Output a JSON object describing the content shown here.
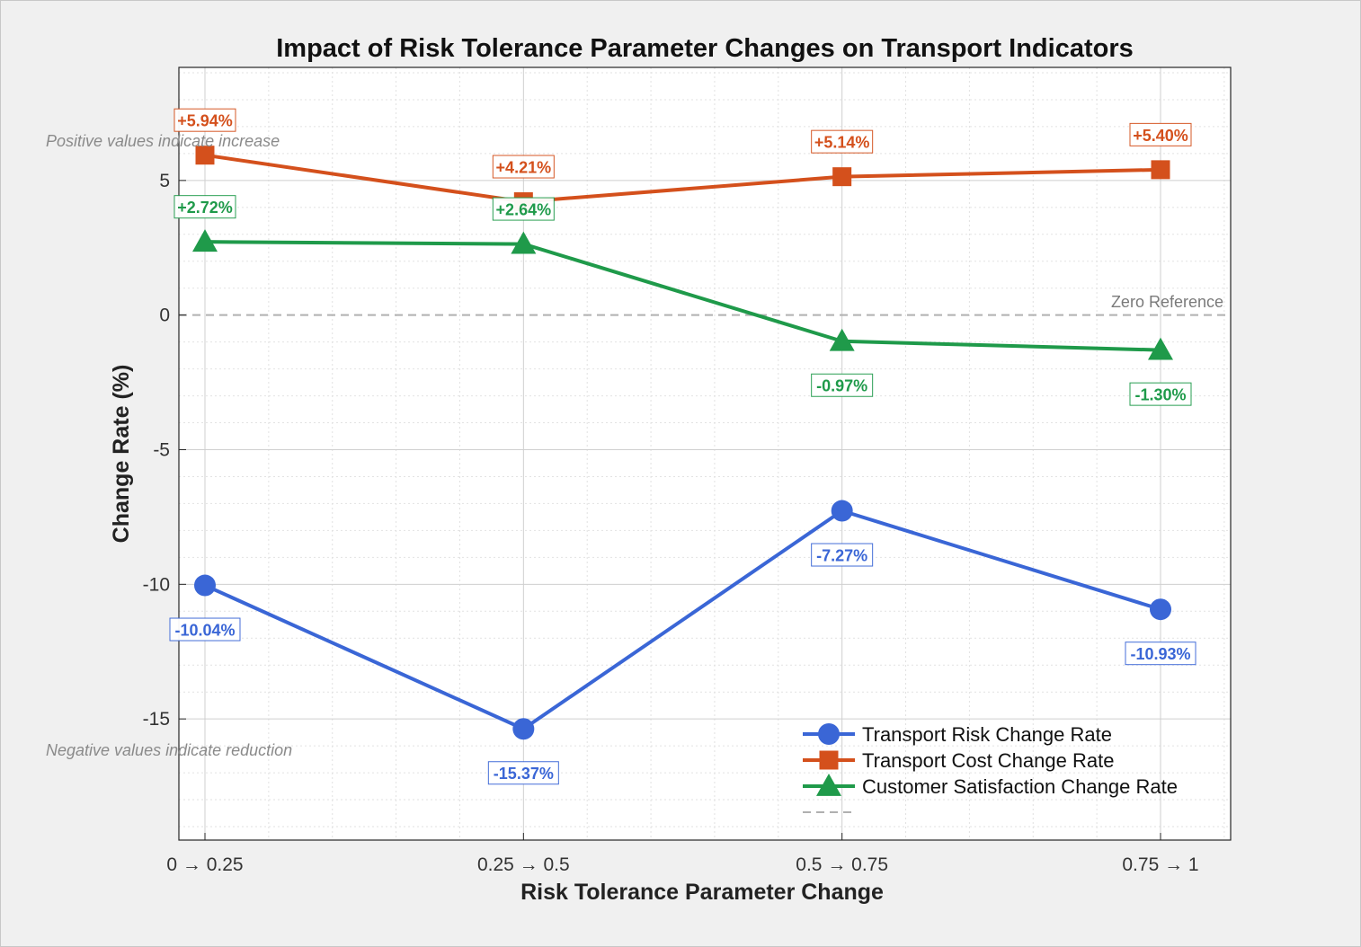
{
  "chart_data": {
    "type": "line",
    "title": "Impact of Risk Tolerance Parameter Changes on Transport Indicators",
    "xlabel": "Risk Tolerance Parameter Change",
    "ylabel": "Change Rate (%)",
    "categories": [
      "0 → 0.25",
      "0.25 → 0.5",
      "0.5 → 0.75",
      "0.75 → 1"
    ],
    "ylim": [
      -19.5,
      9.2
    ],
    "yticks": [
      5,
      0,
      -5,
      -10,
      -15
    ],
    "grid": true,
    "legend_position": "bottom-right",
    "series": [
      {
        "name": "Transport Risk Change Rate",
        "color": "#3a66d6",
        "marker": "circle",
        "values": [
          -10.04,
          -15.37,
          -7.27,
          -10.93
        ],
        "labels": [
          "-10.04%",
          "-15.37%",
          "-7.27%",
          "-10.93%"
        ]
      },
      {
        "name": "Transport Cost Change Rate",
        "color": "#d4501c",
        "marker": "square",
        "values": [
          5.94,
          4.21,
          5.14,
          5.4
        ],
        "labels": [
          "+5.94%",
          "+4.21%",
          "+5.14%",
          "+5.40%"
        ]
      },
      {
        "name": "Customer Satisfaction Change Rate",
        "color": "#1f9a4a",
        "marker": "triangle",
        "values": [
          2.72,
          2.64,
          -0.97,
          -1.3
        ],
        "labels": [
          "+2.72%",
          "+2.64%",
          "-0.97%",
          "-1.30%"
        ]
      }
    ],
    "reference_line": {
      "value": 0,
      "label": "Zero Reference",
      "color": "#b0b0b0"
    },
    "annotations": {
      "positive_note": "Positive values indicate increase",
      "negative_note": "Negative values indicate reduction"
    }
  }
}
